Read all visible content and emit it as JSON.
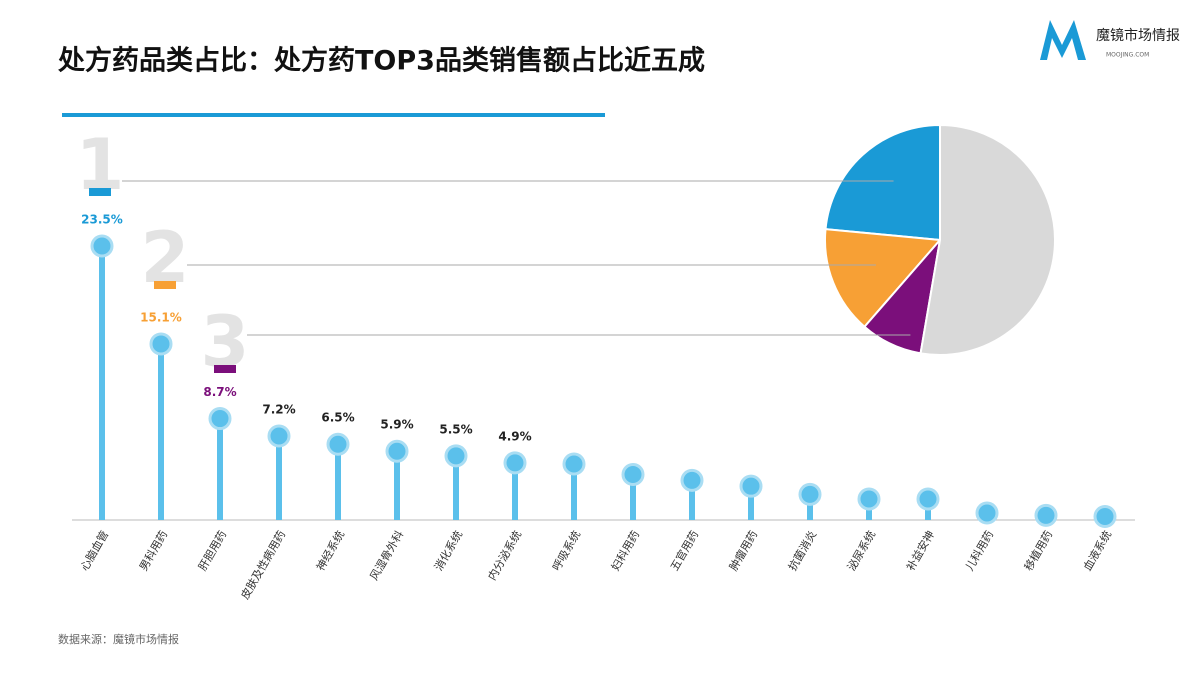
{
  "header": {
    "title": "处方药品类占比：处方药TOP3品类销售额占比近五成",
    "logo": "魔镜市场情报",
    "logo_sub": "MOOJING.COM"
  },
  "chart_data": {
    "type": "lollipop",
    "categories": [
      "心脑血管",
      "男科用药",
      "肝胆用药",
      "皮肤及性病用药",
      "神经系统",
      "风湿骨外科",
      "消化系统",
      "内分泌系统",
      "呼吸系统",
      "妇科用药",
      "五官用药",
      "肿瘤用药",
      "抗菌消炎",
      "泌尿系统",
      "补益安神",
      "儿科用药",
      "移植用药",
      "血液系统"
    ],
    "values": [
      23.5,
      15.1,
      8.7,
      7.2,
      6.5,
      5.9,
      5.5,
      4.9,
      4.8,
      3.9,
      3.4,
      2.9,
      2.2,
      1.8,
      1.8,
      0.6,
      0.4,
      0.3
    ],
    "value_labels": [
      "23.5%",
      "15.1%",
      "8.7%",
      "7.2%",
      "6.5%",
      "5.9%",
      "5.5%",
      "4.9%",
      null,
      null,
      null,
      null,
      null,
      null,
      null,
      null,
      null,
      null
    ],
    "color": "#5bc0eb",
    "ranks": [
      "1",
      "2",
      "3"
    ],
    "highlight_colors": [
      "#1a9ad6",
      "#f7a035",
      "#7b0f7b"
    ],
    "rest_color": "#d9d9d9"
  },
  "footer": {
    "source": "数据来源：魔镜市场情报"
  }
}
